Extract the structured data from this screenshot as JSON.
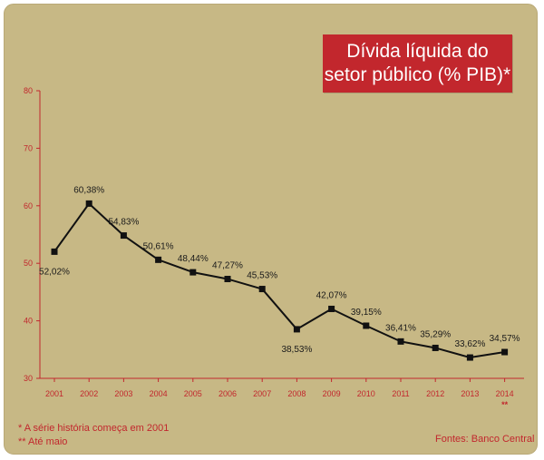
{
  "title_lines": [
    "Dívida líquida do",
    "setor público (% PIB)*"
  ],
  "footnotes": [
    "* A série história começa em 2001",
    "** Até maio"
  ],
  "source": "Fontes: Banco Central",
  "colors": {
    "background": "#c7b885",
    "accent": "#c2272d",
    "line": "#111111"
  },
  "chart_data": {
    "type": "line",
    "title": "Dívida líquida do setor público (% PIB)*",
    "categories": [
      "2001",
      "2002",
      "2003",
      "2004",
      "2005",
      "2006",
      "2007",
      "2008",
      "2009",
      "2010",
      "2011",
      "2012",
      "2013",
      "2014"
    ],
    "extra_mark": {
      "category": "2014",
      "text": "**"
    },
    "series": [
      {
        "values": [
          52.02,
          60.38,
          54.83,
          50.61,
          48.44,
          47.27,
          45.53,
          38.53,
          42.07,
          39.15,
          36.41,
          35.29,
          33.62,
          34.57
        ],
        "labels": [
          "52,02%",
          "60,38%",
          "54,83%",
          "50,61%",
          "48,44%",
          "47,27%",
          "45,53%",
          "38,53%",
          "42,07%",
          "39,15%",
          "36,41%",
          "35,29%",
          "33,62%",
          "34,57%"
        ]
      }
    ],
    "yticks": [
      30,
      40,
      50,
      60,
      70,
      80
    ],
    "ylim": [
      30,
      80
    ],
    "grid": false,
    "xlabel": "",
    "ylabel": ""
  }
}
